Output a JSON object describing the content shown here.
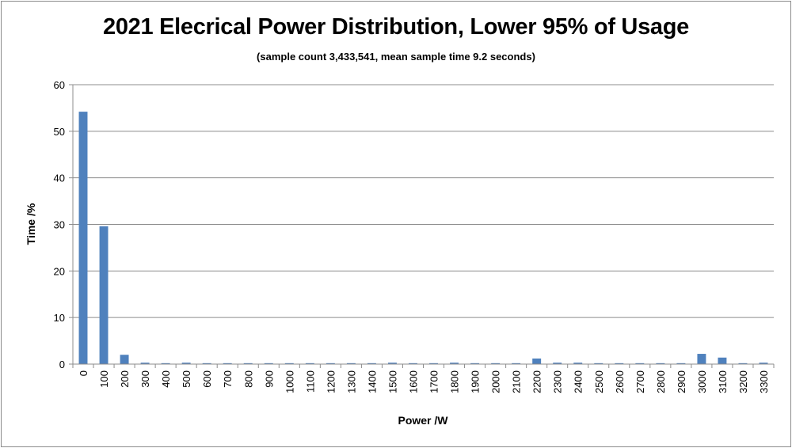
{
  "chart_data": {
    "type": "bar",
    "title": "2021 Elecrical Power Distribution, Lower 95% of Usage",
    "subtitle": "(sample count 3,433,541, mean sample time 9.2 seconds)",
    "xlabel": "Power /W",
    "ylabel": "Time /%",
    "ylim": [
      0,
      60
    ],
    "yticks": [
      "0",
      "10",
      "20",
      "30",
      "40",
      "50",
      "60"
    ],
    "grid": true,
    "bar_color": "#4f81bd",
    "categories": [
      "0",
      "100",
      "200",
      "300",
      "400",
      "500",
      "600",
      "700",
      "800",
      "900",
      "1000",
      "1100",
      "1200",
      "1300",
      "1400",
      "1500",
      "1600",
      "1700",
      "1800",
      "1900",
      "2000",
      "2100",
      "2200",
      "2300",
      "2400",
      "2500",
      "2600",
      "2700",
      "2800",
      "2900",
      "3000",
      "3100",
      "3200",
      "3300"
    ],
    "values": [
      54.2,
      29.6,
      2.0,
      0.3,
      0.2,
      0.3,
      0.2,
      0.2,
      0.2,
      0.2,
      0.2,
      0.2,
      0.2,
      0.2,
      0.2,
      0.3,
      0.2,
      0.2,
      0.3,
      0.2,
      0.2,
      0.2,
      1.2,
      0.3,
      0.3,
      0.2,
      0.2,
      0.2,
      0.2,
      0.2,
      2.2,
      1.4,
      0.2,
      0.3
    ]
  }
}
